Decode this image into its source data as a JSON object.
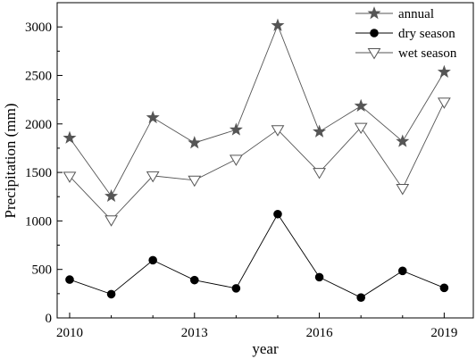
{
  "chart_data": {
    "type": "line",
    "xlabel": "year",
    "ylabel": "Precipitation (mm)",
    "xlim": [
      2009.7,
      2019.7
    ],
    "ylim": [
      0,
      3250
    ],
    "xticks": [
      2010,
      2013,
      2016,
      2019
    ],
    "xtick_labels": [
      "2010",
      "2013",
      "2016",
      "2019"
    ],
    "yticks": [
      0,
      500,
      1000,
      1500,
      2000,
      2500,
      3000
    ],
    "ytick_labels": [
      "0",
      "500",
      "1000",
      "1500",
      "2000",
      "2500",
      "3000"
    ],
    "x": [
      2010,
      2011,
      2012,
      2013,
      2014,
      2015,
      2016,
      2017,
      2018,
      2019
    ],
    "grid": false,
    "legend_position": "top-right",
    "series": [
      {
        "name": "annual",
        "marker": "star",
        "color": "#555555",
        "values": [
          1855,
          1255,
          2065,
          1805,
          1940,
          3015,
          1920,
          2185,
          1820,
          2535
        ]
      },
      {
        "name": "dry season",
        "marker": "circle",
        "color": "#000000",
        "values": [
          395,
          245,
          595,
          390,
          305,
          1070,
          420,
          210,
          485,
          310
        ]
      },
      {
        "name": "wet season",
        "marker": "triangle-down",
        "color": "#555555",
        "values": [
          1460,
          1010,
          1465,
          1420,
          1635,
          1940,
          1500,
          1965,
          1335,
          2225
        ]
      }
    ]
  }
}
